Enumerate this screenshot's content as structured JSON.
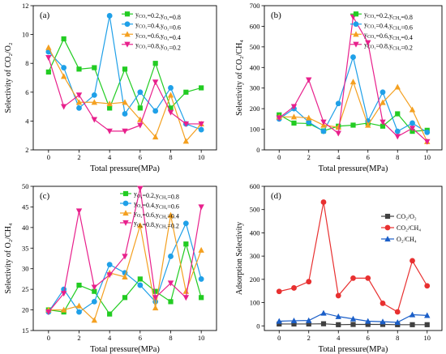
{
  "chart_data": [
    {
      "panel_label": "(a)",
      "type": "line",
      "ylabel": "Selectivity of CO₂/O₂",
      "xlabel": "Total pressure(MPa)",
      "xlim": [
        -1,
        11
      ],
      "ylim": [
        2,
        12
      ],
      "xticks": [
        0,
        2,
        4,
        6,
        8,
        10
      ],
      "yticks": [
        2,
        4,
        6,
        8,
        10,
        12
      ],
      "legend_position": "top-right",
      "x": [
        0,
        1,
        2,
        3,
        4,
        5,
        6,
        7,
        8,
        9,
        10
      ],
      "series": [
        {
          "name": "y_CO2=0.2,y_O2=0.8",
          "color": "#22cc22",
          "marker": "square",
          "values": [
            7.4,
            9.7,
            7.6,
            7.7,
            4.9,
            7.6,
            4.9,
            8.0,
            4.9,
            6.0,
            6.3
          ]
        },
        {
          "name": "y_CO2=0.4,y_O2=0.6",
          "color": "#1fa0e8",
          "marker": "circle",
          "values": [
            8.8,
            7.7,
            4.9,
            5.8,
            11.3,
            4.5,
            6.0,
            4.7,
            6.3,
            3.8,
            3.4
          ]
        },
        {
          "name": "y_CO2=0.6,y_O2=0.4",
          "color": "#f4a020",
          "marker": "triangle",
          "values": [
            9.1,
            7.1,
            5.3,
            5.3,
            5.2,
            5.3,
            4.1,
            2.9,
            5.8,
            2.6,
            3.8
          ]
        },
        {
          "name": "y_CO2=0.8,y_O2=0.2",
          "color": "#e8208c",
          "marker": "triangle-down",
          "values": [
            8.4,
            5.0,
            5.8,
            4.1,
            3.3,
            3.3,
            3.7,
            6.7,
            4.6,
            3.8,
            3.8
          ]
        }
      ]
    },
    {
      "panel_label": "(b)",
      "type": "line",
      "ylabel": "Selectivity of CO₂/CH₄",
      "xlabel": "Total pressure(MPa)",
      "xlim": [
        -1,
        11
      ],
      "ylim": [
        0,
        700
      ],
      "xticks": [
        0,
        2,
        4,
        6,
        8,
        10
      ],
      "yticks": [
        0,
        100,
        200,
        300,
        400,
        500,
        600,
        700
      ],
      "legend_position": "top-right",
      "x": [
        0,
        1,
        2,
        3,
        4,
        5,
        6,
        7,
        8,
        9,
        10
      ],
      "series": [
        {
          "name": "y_CO2=0.2,y_CH4=0.8",
          "color": "#22cc22",
          "marker": "square",
          "values": [
            170,
            130,
            128,
            92,
            115,
            120,
            130,
            115,
            175,
            90,
            95
          ]
        },
        {
          "name": "y_CO2=0.4,y_CH4=0.6",
          "color": "#1fa0e8",
          "marker": "circle",
          "values": [
            150,
            200,
            135,
            90,
            225,
            450,
            140,
            280,
            90,
            130,
            85
          ]
        },
        {
          "name": "y_CO2=0.6,y_CH4=0.4",
          "color": "#f4a020",
          "marker": "triangle",
          "values": [
            160,
            160,
            155,
            120,
            110,
            330,
            120,
            230,
            305,
            195,
            40
          ]
        },
        {
          "name": "y_CO2=0.8,y_CH4=0.2",
          "color": "#e8208c",
          "marker": "triangle-down",
          "values": [
            155,
            210,
            340,
            135,
            80,
            645,
            520,
            135,
            65,
            105,
            40
          ]
        }
      ]
    },
    {
      "panel_label": "(c)",
      "type": "line",
      "ylabel": "Selectivity of O₂/CH₄",
      "xlabel": "Total pressure(MPa)",
      "xlim": [
        -1,
        11
      ],
      "ylim": [
        15,
        50
      ],
      "xticks": [
        0,
        2,
        4,
        6,
        8,
        10
      ],
      "yticks": [
        15,
        20,
        25,
        30,
        35,
        40,
        45,
        50
      ],
      "legend_position": "top-right",
      "x": [
        0,
        1,
        2,
        3,
        4,
        5,
        6,
        7,
        8,
        9,
        10
      ],
      "series": [
        {
          "name": "y_O2=0.2,y_CH4=0.8",
          "color": "#22cc22",
          "marker": "square",
          "values": [
            20.0,
            19.5,
            26.0,
            24.5,
            19.0,
            23.0,
            27.5,
            24.5,
            22.0,
            36.0,
            23.0
          ]
        },
        {
          "name": "y_O2=0.4,y_CH4=0.6",
          "color": "#1fa0e8",
          "marker": "circle",
          "values": [
            19.5,
            25.0,
            19.5,
            22.0,
            31.0,
            29.0,
            26.0,
            22.0,
            33.0,
            41.0,
            27.5
          ]
        },
        {
          "name": "y_O2=0.6,y_CH4=0.4",
          "color": "#f4a020",
          "marker": "triangle",
          "values": [
            20.0,
            20.0,
            21.0,
            17.5,
            29.0,
            28.0,
            40.5,
            20.5,
            43.0,
            24.5,
            34.5
          ]
        },
        {
          "name": "y_O2=0.8,y_CH4=0.2",
          "color": "#e8208c",
          "marker": "triangle-down",
          "values": [
            19.5,
            24.0,
            44.0,
            25.5,
            28.5,
            33.0,
            49.5,
            23.0,
            26.5,
            23.0,
            45.0
          ]
        }
      ]
    },
    {
      "panel_label": "(d)",
      "type": "line",
      "ylabel": "Adsorption Selectivity",
      "xlabel": "Total pressure(MPa)",
      "xlim": [
        -1,
        11
      ],
      "ylim": [
        -20,
        600
      ],
      "xticks": [
        0,
        2,
        4,
        6,
        8,
        10
      ],
      "yticks": [
        0,
        100,
        200,
        300,
        400,
        500,
        600
      ],
      "legend_position": "top-right",
      "x": [
        0,
        1,
        2,
        3,
        4,
        5,
        6,
        7,
        8,
        9,
        10
      ],
      "series": [
        {
          "name": "CO2/O2",
          "color": "#404040",
          "marker": "square",
          "values": [
            8,
            8,
            8,
            9,
            5,
            6,
            6,
            6,
            5,
            5,
            5
          ]
        },
        {
          "name": "CO2/CH4",
          "color": "#e83030",
          "marker": "circle",
          "values": [
            148,
            163,
            190,
            532,
            130,
            205,
            205,
            97,
            60,
            280,
            172
          ]
        },
        {
          "name": "O2/CH4",
          "color": "#1a5ec8",
          "marker": "triangle",
          "values": [
            20,
            22,
            23,
            55,
            40,
            30,
            20,
            18,
            15,
            48,
            45
          ]
        }
      ]
    }
  ],
  "legend_labels": [
    [
      {
        "a": "y",
        "as": "CO₂",
        "m": "=0.2,y",
        "bs": "O₂",
        "e": "=0.8"
      },
      {
        "a": "y",
        "as": "CO₂",
        "m": "=0.4,y",
        "bs": "O₂",
        "e": "=0.6"
      },
      {
        "a": "y",
        "as": "CO₂",
        "m": "=0.6,y",
        "bs": "O₂",
        "e": "=0.4"
      },
      {
        "a": "y",
        "as": "CO₂",
        "m": "=0.8,y",
        "bs": "O₂",
        "e": "=0.2"
      }
    ],
    [
      {
        "a": "y",
        "as": "CO₂",
        "m": "=0.2,y",
        "bs": "CH₄",
        "e": "=0.8"
      },
      {
        "a": "y",
        "as": "CO₂",
        "m": "=0.4,y",
        "bs": "CH₄",
        "e": "=0.6"
      },
      {
        "a": "y",
        "as": "CO₂",
        "m": "=0.6,y",
        "bs": "CH₄",
        "e": "=0.4"
      },
      {
        "a": "y",
        "as": "CO₂",
        "m": "=0.8,y",
        "bs": "CH₄",
        "e": "=0.2"
      }
    ],
    [
      {
        "a": "y",
        "as": "O₂",
        "m": "=0.2,y",
        "bs": "CH₄",
        "e": "=0.8"
      },
      {
        "a": "y",
        "as": "O₂",
        "m": "=0.4,y",
        "bs": "CH₄",
        "e": "=0.6"
      },
      {
        "a": "y",
        "as": "O₂",
        "m": "=0.6,y",
        "bs": "CH₄",
        "e": "=0.4"
      },
      {
        "a": "y",
        "as": "O₂",
        "m": "=0.8,y",
        "bs": "CH₄",
        "e": "=0.2"
      }
    ],
    [
      {
        "a": "CO₂/O₂",
        "as": "",
        "m": "",
        "bs": "",
        "e": ""
      },
      {
        "a": "CO₂/CH₄",
        "as": "",
        "m": "",
        "bs": "",
        "e": ""
      },
      {
        "a": "O₂/CH₄",
        "as": "",
        "m": "",
        "bs": "",
        "e": ""
      }
    ]
  ]
}
